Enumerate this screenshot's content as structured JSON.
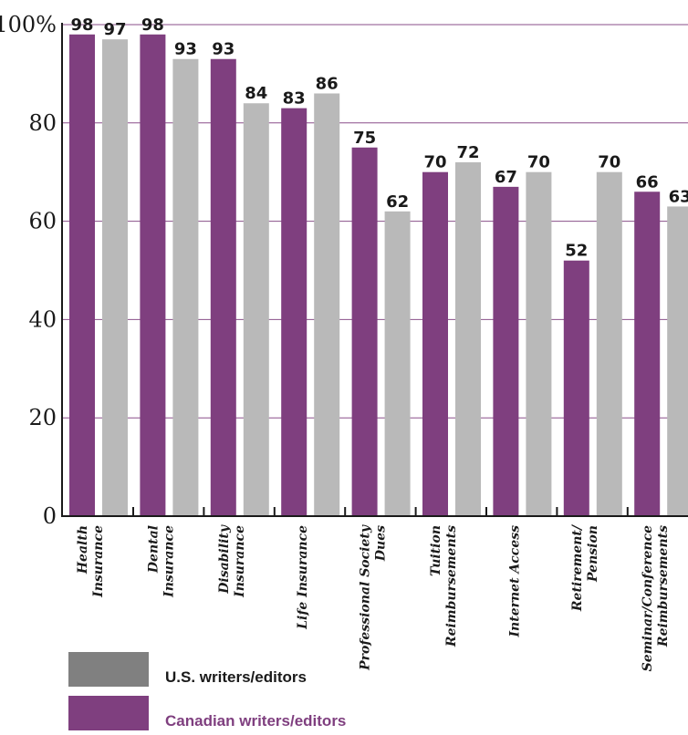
{
  "chart_data": {
    "type": "bar",
    "categories": [
      [
        "Health",
        "Insurance"
      ],
      [
        "Dental",
        "Insurance"
      ],
      [
        "Disability",
        "Insurance"
      ],
      [
        "Life Insurance"
      ],
      [
        "Professional Society",
        "Dues"
      ],
      [
        "Tuition",
        "Reimbursements"
      ],
      [
        "Internet Access"
      ],
      [
        "Retirement/",
        "Pension"
      ],
      [
        "Seminar/Conference",
        "Reimbursements"
      ]
    ],
    "series": [
      {
        "name": "Canadian writers/editors",
        "color": "#7f3f7f",
        "values": [
          98,
          98,
          93,
          83,
          75,
          70,
          67,
          52,
          66
        ]
      },
      {
        "name": "U.S. writers/editors",
        "color": "#b9b9b9",
        "values": [
          97,
          93,
          84,
          86,
          62,
          72,
          70,
          70,
          63
        ]
      }
    ],
    "y_ticks": [
      "0",
      "20",
      "40",
      "60",
      "80",
      "100%"
    ],
    "ylim": [
      0,
      100
    ],
    "grid": true,
    "gridline_color": "#8a4f8a",
    "legend_placement": "bottom-left",
    "legend": [
      {
        "label": "U.S. writers/editors",
        "swatch_color": "#808080",
        "text_color": "#1a1a1a"
      },
      {
        "label": "Canadian writers/editors",
        "swatch_color": "#7f3f7f",
        "text_color": "#7f3f7f"
      }
    ]
  }
}
